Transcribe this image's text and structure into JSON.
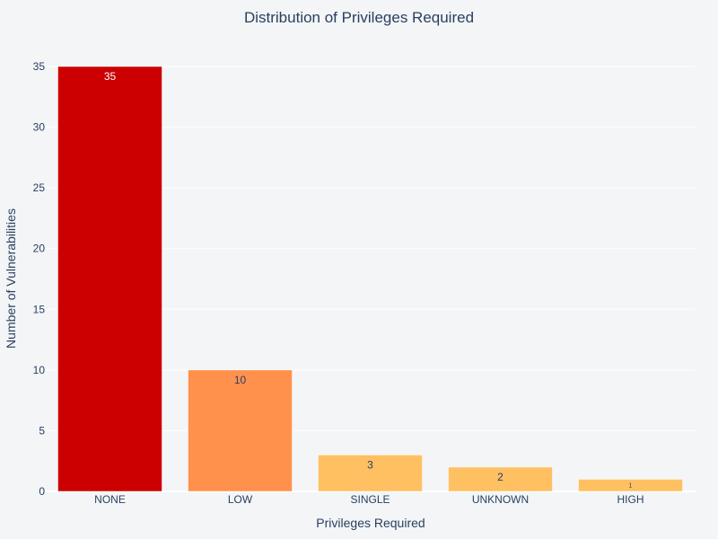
{
  "chart_data": {
    "type": "bar",
    "title": "Distribution of Privileges Required",
    "xlabel": "Privileges Required",
    "ylabel": "Number of Vulnerabilities",
    "categories": [
      "NONE",
      "LOW",
      "SINGLE",
      "UNKNOWN",
      "HIGH"
    ],
    "values": [
      35,
      10,
      3,
      2,
      1
    ],
    "data_labels": [
      "35",
      "10",
      "3",
      "2",
      "1"
    ],
    "colors": [
      "#cc0000",
      "#ff914d",
      "#ffc062",
      "#ffc062",
      "#ffc062"
    ],
    "ylim": [
      0,
      35
    ],
    "yticks": [
      0,
      5,
      10,
      15,
      20,
      25,
      30,
      35
    ],
    "grid": true,
    "legend": "none"
  }
}
